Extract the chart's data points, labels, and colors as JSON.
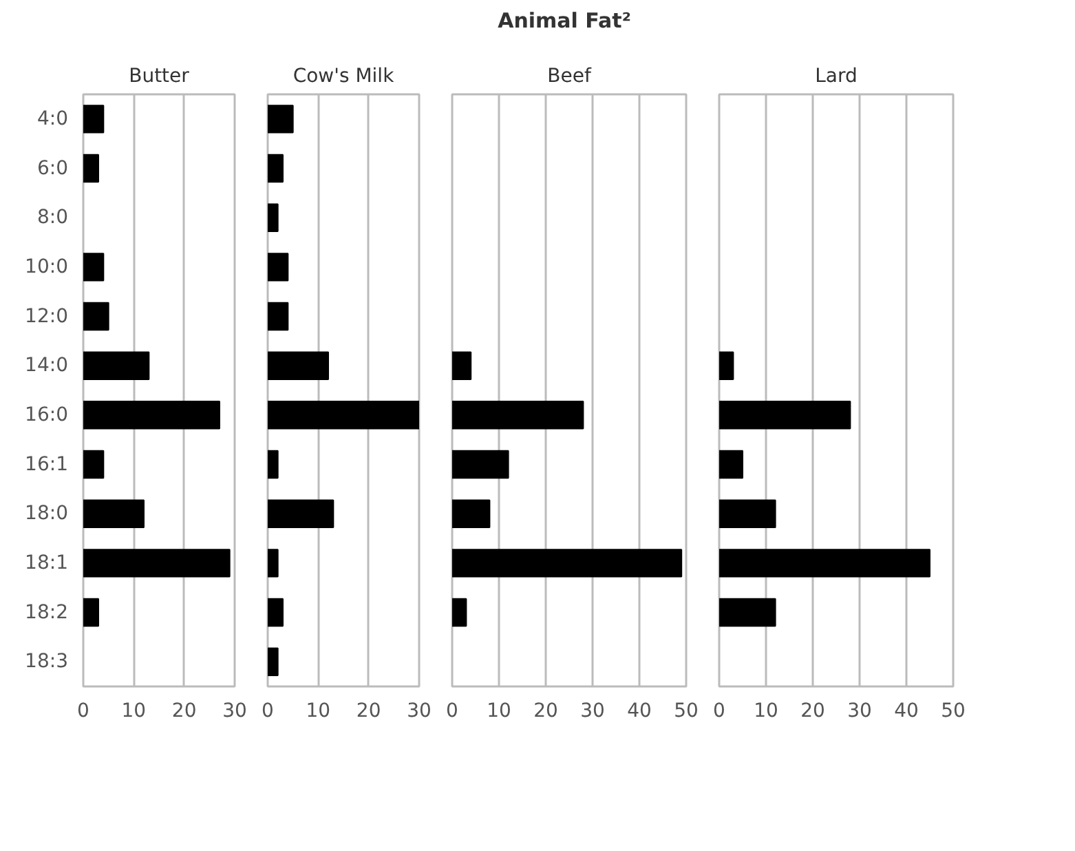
{
  "chart_data": [
    {
      "type": "other",
      "title": "Animal Fat²"
    },
    {
      "type": "bar",
      "orientation": "horizontal",
      "title": "Butter",
      "categories": [
        "4:0",
        "6:0",
        "8:0",
        "10:0",
        "12:0",
        "14:0",
        "16:0",
        "16:1",
        "18:0",
        "18:1",
        "18:2",
        "18:3"
      ],
      "values": [
        4,
        3,
        null,
        4,
        5,
        13,
        27,
        4,
        12,
        29,
        3,
        null
      ],
      "color": "#000000",
      "xlim": [
        0,
        30
      ],
      "xticks": [
        0,
        10,
        20,
        30
      ],
      "grid": "x"
    },
    {
      "type": "bar",
      "orientation": "horizontal",
      "title": "Cow's Milk",
      "values": [
        5,
        3,
        2,
        4,
        4,
        12,
        30,
        2,
        13,
        2,
        3,
        2
      ],
      "color": "#000000",
      "xlim": [
        0,
        30
      ],
      "xticks": [
        0,
        10,
        20,
        30
      ],
      "grid": "x",
      "tick_labels": "x"
    },
    {
      "type": "bar",
      "orientation": "horizontal",
      "title": "Beef",
      "values": [
        null,
        null,
        null,
        null,
        null,
        4,
        28,
        12,
        8,
        49,
        3,
        null
      ],
      "color": "#000000",
      "xlim": [
        0,
        50
      ],
      "xticks": [
        0,
        10,
        20,
        30,
        40,
        50
      ],
      "grid": "x",
      "tick_labels": "x"
    },
    {
      "type": "bar",
      "orientation": "horizontal",
      "title": "Lard",
      "values": [
        null,
        null,
        null,
        null,
        null,
        3,
        28,
        5,
        12,
        45,
        12,
        null
      ],
      "color": "#000000",
      "xlim": [
        0,
        50
      ],
      "xticks": [
        0,
        10,
        20,
        30,
        40,
        50
      ],
      "grid": "x",
      "tick_labels": "x"
    }
  ]
}
